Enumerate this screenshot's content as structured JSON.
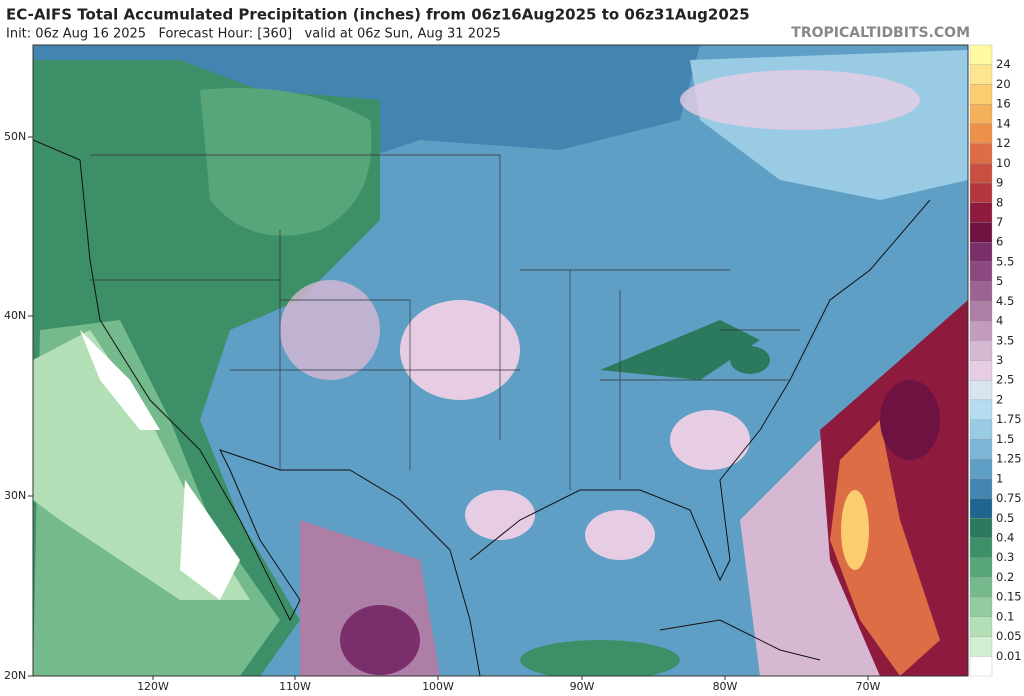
{
  "header": {
    "title": "EC-AIFS Total Accumulated Precipitation (inches) from 06z16Aug2025 to 06z31Aug2025",
    "subtitle": "Init: 06z Aug 16 2025   Forecast Hour: [360]   valid at 06z Sun, Aug 31 2025",
    "watermark": "TROPICALTIDBITS.COM"
  },
  "map": {
    "lat_labels": [
      "50N",
      "40N",
      "30N",
      "20N"
    ],
    "lon_labels": [
      "120W",
      "110W",
      "100W",
      "90W",
      "80W",
      "70W"
    ]
  },
  "colorbar": {
    "labels": [
      "24",
      "20",
      "16",
      "14",
      "12",
      "10",
      "9",
      "8",
      "7",
      "6",
      "5.5",
      "5",
      "4.5",
      "4",
      "3.5",
      "3",
      "2.5",
      "2",
      "1.75",
      "1.5",
      "1.25",
      "1",
      "0.75",
      "0.5",
      "0.4",
      "0.3",
      "0.2",
      "0.15",
      "0.1",
      "0.05",
      "0.01"
    ],
    "colors": [
      "#fffaa0",
      "#fde58f",
      "#fbcd70",
      "#f5b05a",
      "#ec904a",
      "#dc6d44",
      "#c75040",
      "#b3373f",
      "#8e1a3d",
      "#6e1242",
      "#7a2e6a",
      "#8a4a80",
      "#9c6392",
      "#ad7ea6",
      "#c19cbd",
      "#d7b8d3",
      "#e6cde3",
      "#d8e4f0",
      "#b5dcf1",
      "#99cbe4",
      "#7cb7d7",
      "#5f9fc5",
      "#4484b0",
      "#1f6590",
      "#2c7a5e",
      "#3d8f67",
      "#58a57a",
      "#75ba8c",
      "#93cc9f",
      "#b2dfb5",
      "#d1efd0",
      "#ffffff"
    ]
  }
}
